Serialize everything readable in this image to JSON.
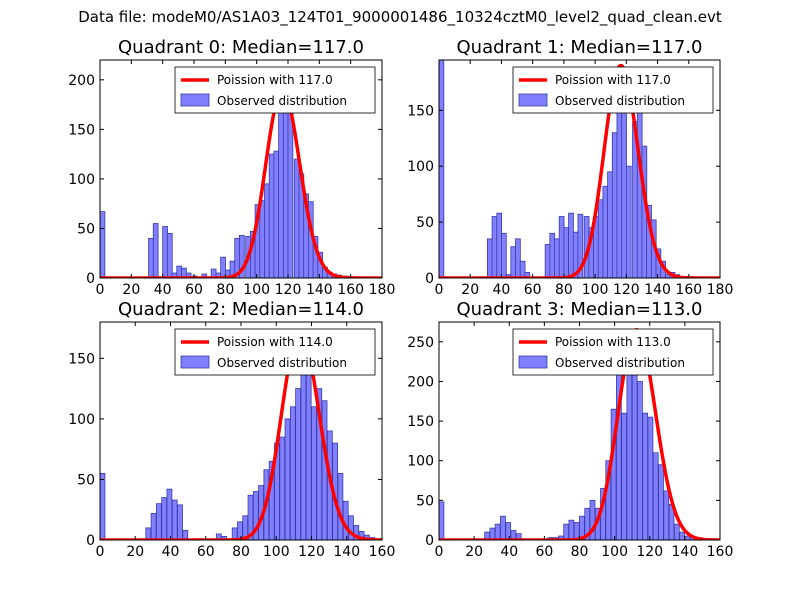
{
  "figure": {
    "suptitle": "Data file: modeM0/AS1A03_124T01_9000001486_10324cztM0_level2_quad_clean.evt"
  },
  "colors": {
    "bar_fill": "#8080ff",
    "bar_edge": "#3a3aa8",
    "poisson_line": "#ff0000",
    "axes": "#000000"
  },
  "chart_data": [
    {
      "type": "bar",
      "title": "Quadrant 0: Median=117.0",
      "legend": {
        "location": "top-right",
        "line_label": "Poission with 117.0",
        "bar_label": "Observed distribution"
      },
      "xlim": [
        0,
        180
      ],
      "ylim": [
        0,
        220
      ],
      "xticks": [
        0,
        20,
        40,
        60,
        80,
        100,
        120,
        140,
        160,
        180
      ],
      "yticks": [
        0,
        50,
        100,
        150,
        200
      ],
      "bin_width": 3.1,
      "bin_starts": [
        0,
        31,
        34,
        40,
        43,
        46,
        49,
        52,
        55,
        59,
        62,
        65,
        68,
        71,
        74,
        77,
        80,
        83,
        86,
        89,
        93,
        96,
        99,
        102,
        105,
        108,
        111,
        114,
        117,
        120,
        124,
        127,
        130,
        133,
        136,
        139,
        142,
        145,
        148,
        151,
        155,
        158,
        161
      ],
      "counts": [
        67,
        40,
        55,
        52,
        45,
        5,
        12,
        10,
        5,
        2,
        1,
        4,
        1,
        9,
        5,
        21,
        8,
        17,
        40,
        43,
        42,
        47,
        74,
        78,
        95,
        125,
        128,
        168,
        180,
        168,
        120,
        105,
        85,
        77,
        42,
        26,
        11,
        6,
        4,
        3,
        2,
        1,
        1
      ],
      "poisson": {
        "lambda": 117.0,
        "peak": 190
      }
    },
    {
      "type": "bar",
      "title": "Quadrant 1: Median=117.0",
      "legend": {
        "location": "top-right",
        "line_label": "Poission with 117.0",
        "bar_label": "Observed distribution"
      },
      "xlim": [
        0,
        180
      ],
      "ylim": [
        0,
        195
      ],
      "xticks": [
        0,
        20,
        40,
        60,
        80,
        100,
        120,
        140,
        160,
        180
      ],
      "yticks": [
        0,
        50,
        100,
        150
      ],
      "bin_width": 3.1,
      "bin_starts": [
        0,
        31,
        34,
        37,
        40,
        43,
        46,
        49,
        52,
        55,
        59,
        62,
        65,
        68,
        71,
        74,
        77,
        80,
        83,
        86,
        89,
        93,
        96,
        99,
        102,
        105,
        108,
        111,
        114,
        117,
        120,
        124,
        127,
        130,
        133,
        136,
        139,
        142,
        145,
        148,
        151,
        155,
        158
      ],
      "counts": [
        195,
        35,
        55,
        58,
        40,
        3,
        28,
        35,
        15,
        5,
        1,
        1,
        1,
        30,
        40,
        35,
        55,
        45,
        58,
        41,
        57,
        55,
        45,
        55,
        70,
        82,
        95,
        130,
        150,
        168,
        100,
        140,
        155,
        118,
        65,
        52,
        26,
        15,
        3,
        5,
        3,
        1,
        1
      ],
      "poisson": {
        "lambda": 117.0,
        "peak": 190
      }
    },
    {
      "type": "bar",
      "title": "Quadrant 2: Median=114.0",
      "legend": {
        "location": "top-right",
        "line_label": "Poission with 114.0",
        "bar_label": "Observed distribution"
      },
      "xlim": [
        0,
        160
      ],
      "ylim": [
        0,
        180
      ],
      "xticks": [
        0,
        20,
        40,
        60,
        80,
        100,
        120,
        140,
        160
      ],
      "yticks": [
        0,
        50,
        100,
        150
      ],
      "bin_width": 2.8,
      "bin_starts": [
        0,
        26,
        29,
        32,
        35,
        38,
        41,
        44,
        47,
        51,
        54,
        57,
        60,
        63,
        66,
        69,
        72,
        75,
        78,
        81,
        84,
        87,
        90,
        93,
        96,
        99,
        102,
        105,
        108,
        111,
        114,
        117,
        120,
        123,
        126,
        129,
        132,
        135,
        138,
        141,
        144,
        147,
        150,
        153,
        156
      ],
      "counts": [
        55,
        10,
        22,
        30,
        35,
        42,
        33,
        29,
        8,
        0,
        1,
        1,
        0,
        0,
        5,
        3,
        1,
        10,
        15,
        20,
        37,
        40,
        45,
        58,
        65,
        80,
        85,
        100,
        110,
        125,
        150,
        160,
        110,
        125,
        115,
        90,
        80,
        55,
        32,
        20,
        12,
        7,
        4,
        2,
        0
      ],
      "poisson": {
        "lambda": 114.0,
        "peak": 172
      }
    },
    {
      "type": "bar",
      "title": "Quadrant 3: Median=113.0",
      "legend": {
        "location": "top-right",
        "line_label": "Poission with 113.0",
        "bar_label": "Observed distribution"
      },
      "xlim": [
        0,
        160
      ],
      "ylim": [
        0,
        275
      ],
      "xticks": [
        0,
        20,
        40,
        60,
        80,
        100,
        120,
        140,
        160
      ],
      "yticks": [
        0,
        50,
        100,
        150,
        200,
        250
      ],
      "bin_width": 2.8,
      "bin_starts": [
        0,
        26,
        29,
        32,
        35,
        38,
        41,
        44,
        62,
        65,
        68,
        71,
        74,
        77,
        80,
        83,
        86,
        89,
        92,
        95,
        98,
        101,
        104,
        107,
        110,
        113,
        116,
        119,
        122,
        125,
        128,
        131,
        134,
        137,
        140,
        143,
        146,
        149,
        152,
        155
      ],
      "counts": [
        48,
        10,
        15,
        20,
        30,
        22,
        12,
        8,
        3,
        3,
        5,
        20,
        25,
        22,
        30,
        40,
        50,
        40,
        65,
        100,
        165,
        210,
        160,
        240,
        230,
        200,
        160,
        155,
        110,
        95,
        62,
        45,
        20,
        10,
        5,
        3,
        2,
        1,
        1,
        1
      ],
      "poisson": {
        "lambda": 113.0,
        "peak": 265
      }
    }
  ]
}
